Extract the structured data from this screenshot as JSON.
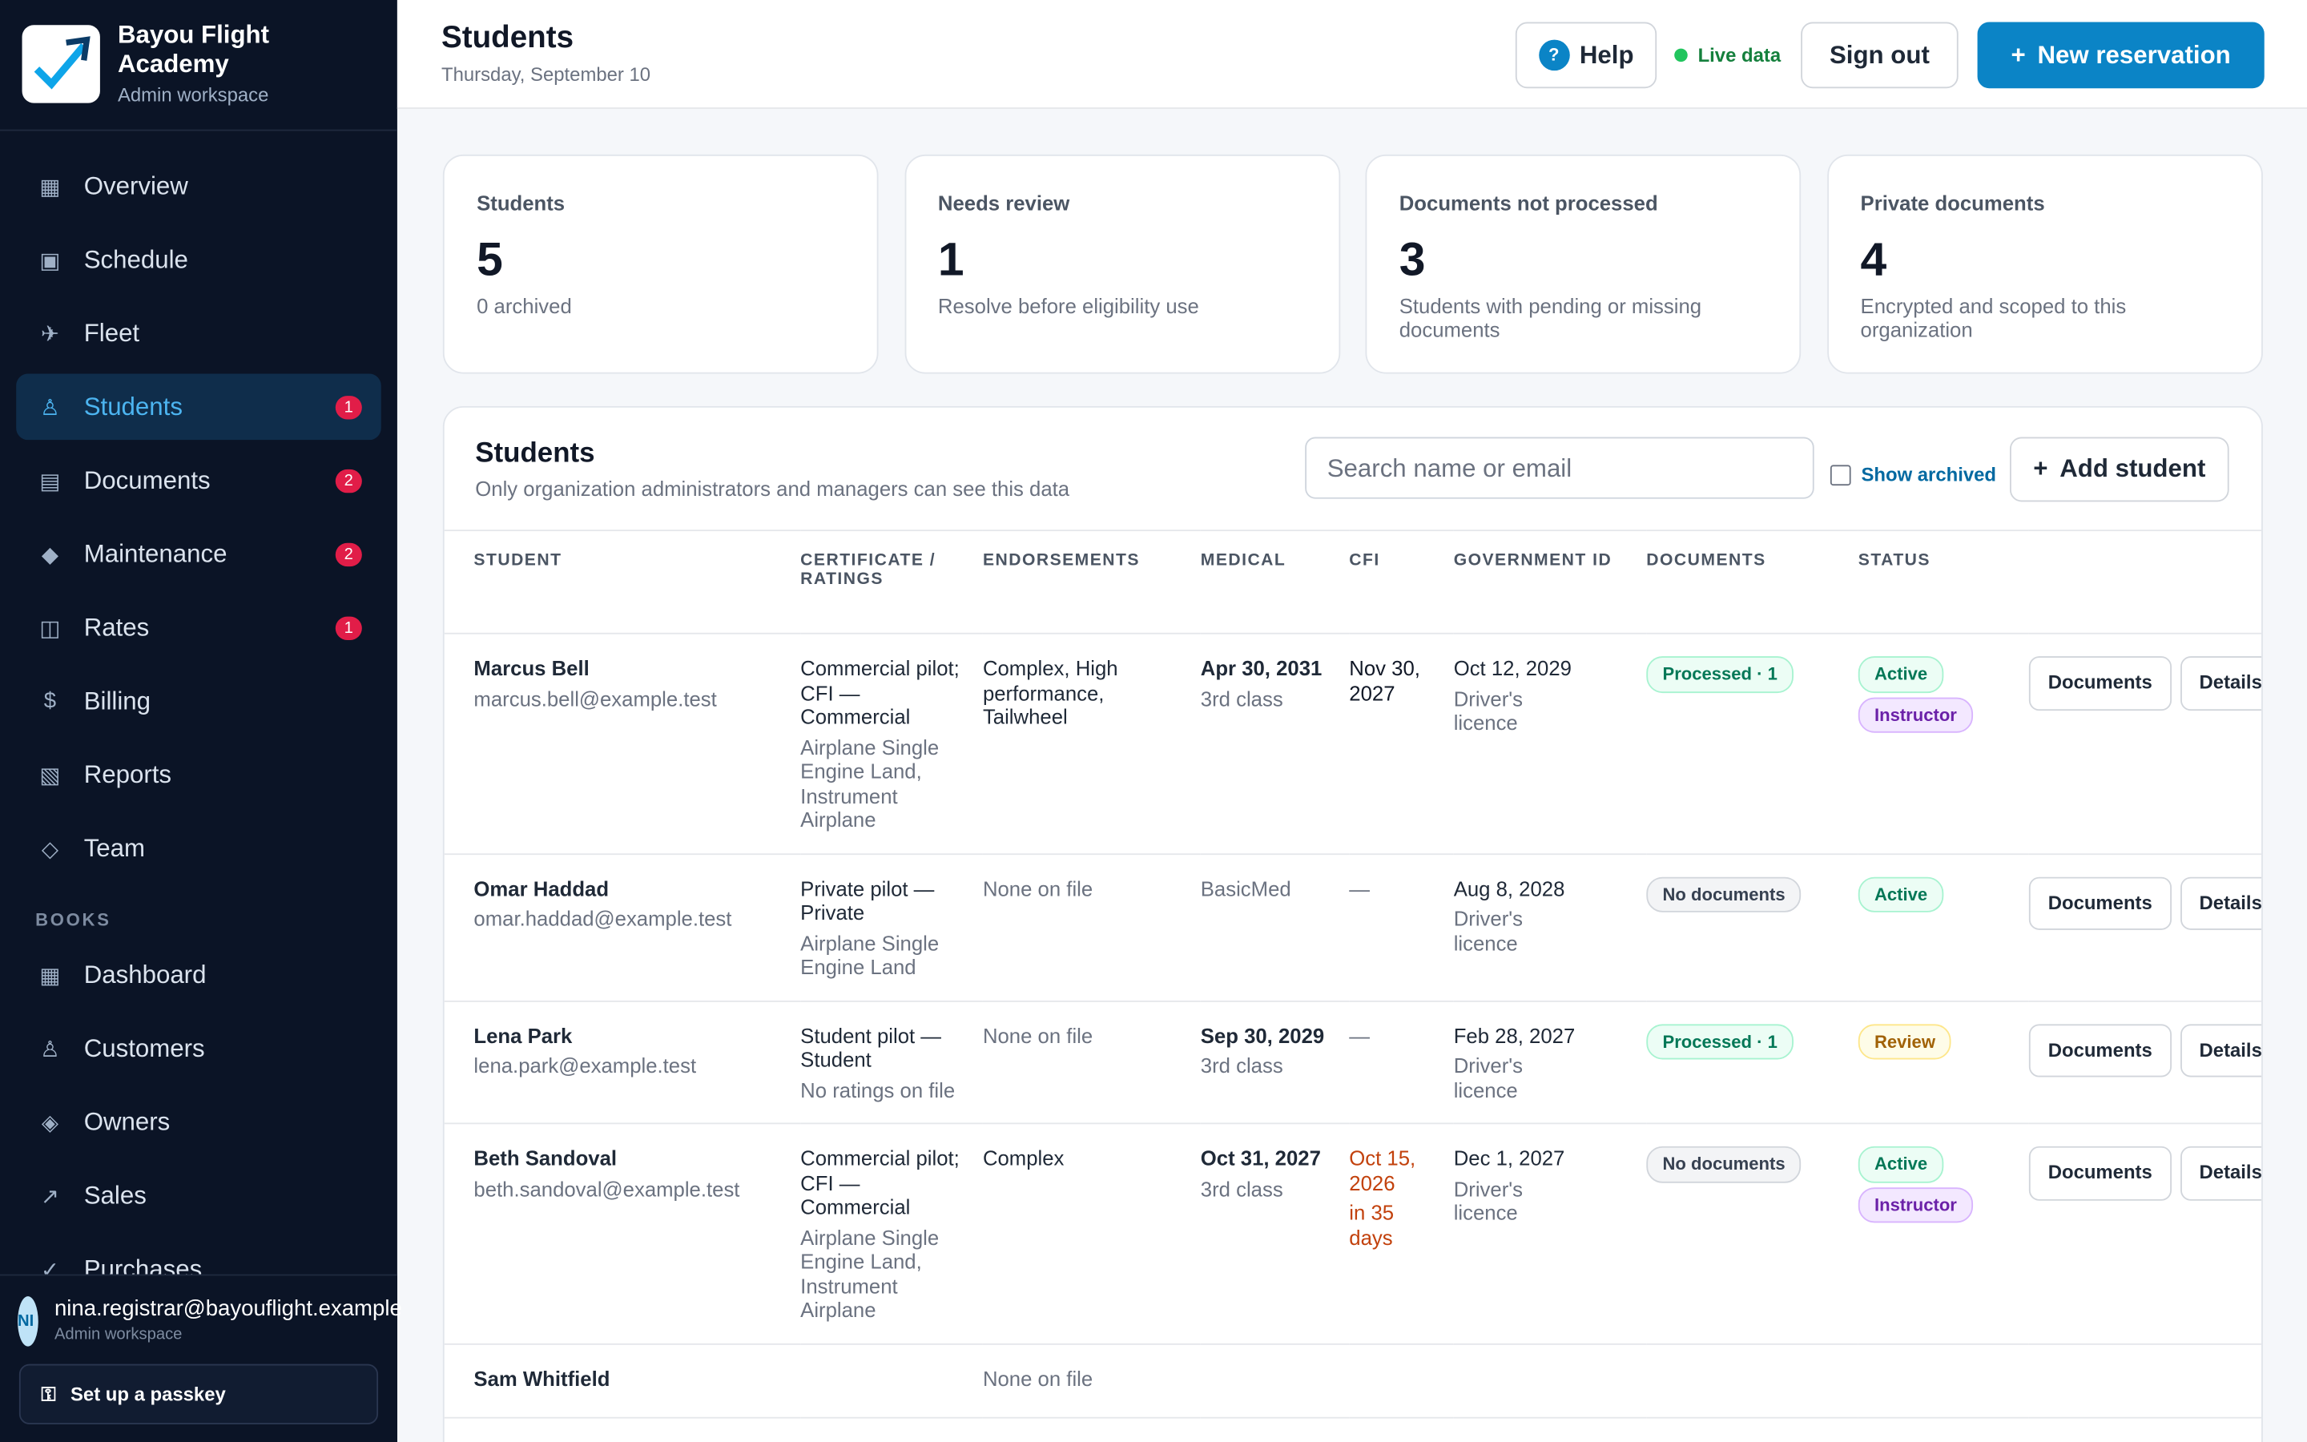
{
  "brand": {
    "name": "Bayou Flight Academy",
    "subtitle": "Admin workspace"
  },
  "nav": [
    {
      "label": "Overview"
    },
    {
      "label": "Schedule"
    },
    {
      "label": "Fleet"
    },
    {
      "label": "Students",
      "badge": 1
    },
    {
      "label": "Documents",
      "badge": 2
    },
    {
      "label": "Maintenance",
      "badge": 2
    },
    {
      "label": "Rates",
      "badge": 1
    },
    {
      "label": "Billing"
    },
    {
      "label": "Reports"
    },
    {
      "label": "Team"
    }
  ],
  "books": {
    "heading": "BOOKS",
    "items": [
      "Dashboard",
      "Customers",
      "Owners",
      "Sales",
      "Purchases"
    ]
  },
  "user": {
    "initials": "NI",
    "email": "nina.registrar@bayouflight.example",
    "role": "Admin workspace",
    "passkey": "Set up a passkey"
  },
  "header": {
    "title": "Students",
    "date": "Thursday, September 10",
    "help": "Help",
    "live": "Live data",
    "sign_out": "Sign out",
    "new_reservation": "New reservation"
  },
  "stats": [
    {
      "label": "Students",
      "value": 5,
      "note": "0 archived"
    },
    {
      "label": "Needs review",
      "value": 1,
      "note": "Resolve before eligibility use"
    },
    {
      "label": "Documents not processed",
      "value": 3,
      "note": "Students with pending or missing documents"
    },
    {
      "label": "Private documents",
      "value": 4,
      "note": "Encrypted and scoped to this organization"
    }
  ],
  "panel": {
    "title": "Students",
    "subtitle": "Only organization administrators and managers can see this data",
    "search": "Search name or email",
    "show_archived": "Show archived",
    "add_student": "Add student"
  },
  "table": {
    "columns": [
      "STUDENT",
      "CERTIFICATE / RATINGS",
      "ENDORSEMENTS",
      "MEDICAL",
      "CFI",
      "GOVERNMENT ID",
      "DOCUMENTS",
      "STATUS"
    ],
    "actions": [
      "Documents",
      "Details"
    ],
    "rows": [
      {
        "name": "Marcus Bell",
        "email": "marcus.bell@example.test",
        "certificate": "Commercial pilot; CFI — Commercial",
        "ratings": "Airplane Single Engine Land, Instrument Airplane",
        "endorsements": "Complex, High performance, Tailwheel",
        "medical": "Apr 30, 2031",
        "medical_class": "3rd class",
        "cfi": {
          "text": "Nov 30, 2027",
          "color": "#111827"
        },
        "gov_id": "Oct 12, 2029",
        "gov_type": "Driver's licence",
        "documents": {
          "label": "Processed · 1",
          "color": "#047857",
          "bg": "#ecfdf5",
          "border": "#a7f3d0"
        },
        "status": [
          {
            "label": "Active",
            "color": "#047857",
            "bg": "#ecfdf5",
            "border": "#a7f3d0"
          },
          {
            "label": "Instructor",
            "color": "#6b21a8",
            "bg": "#f3e8ff",
            "border": "#d8b4fe"
          }
        ]
      },
      {
        "name": "Omar Haddad",
        "email": "omar.haddad@example.test",
        "certificate": "Private pilot — Private",
        "ratings": "Airplane Single Engine Land",
        "endorsements": "None on file",
        "endorsements_muted": true,
        "medical": "BasicMed",
        "medical_muted": true,
        "cfi": {
          "text": "—",
          "color": "#6b7280"
        },
        "gov_id": "Aug 8, 2028",
        "gov_type": "Driver's licence",
        "documents": {
          "label": "No documents",
          "color": "#374151",
          "bg": "#f3f4f6",
          "border": "#d1d5db"
        },
        "status": [
          {
            "label": "Active",
            "color": "#047857",
            "bg": "#ecfdf5",
            "border": "#a7f3d0"
          }
        ]
      },
      {
        "name": "Lena Park",
        "email": "lena.park@example.test",
        "certificate": "Student pilot — Student",
        "ratings": "No ratings on file",
        "endorsements": "None on file",
        "endorsements_muted": true,
        "medical": "Sep 30, 2029",
        "medical_class": "3rd class",
        "cfi": {
          "text": "—",
          "color": "#6b7280"
        },
        "gov_id": "Feb 28, 2027",
        "gov_type": "Driver's licence",
        "documents": {
          "label": "Processed · 1",
          "color": "#047857",
          "bg": "#ecfdf5",
          "border": "#a7f3d0"
        },
        "status": [
          {
            "label": "Review",
            "color": "#a16207",
            "bg": "#fefce8",
            "border": "#fde68a"
          }
        ]
      },
      {
        "name": "Beth Sandoval",
        "email": "beth.sandoval@example.test",
        "certificate": "Commercial pilot; CFI — Commercial",
        "ratings": "Airplane Single Engine Land, Instrument Airplane",
        "endorsements": "Complex",
        "medical": "Oct 31, 2027",
        "medical_class": "3rd class",
        "cfi": {
          "text": "Oct 15, 2026",
          "note": "in 35 days",
          "color": "#c2410c"
        },
        "gov_id": "Dec 1, 2027",
        "gov_type": "Driver's licence",
        "documents": {
          "label": "No documents",
          "color": "#374151",
          "bg": "#f3f4f6",
          "border": "#d1d5db"
        },
        "status": [
          {
            "label": "Active",
            "color": "#047857",
            "bg": "#ecfdf5",
            "border": "#a7f3d0"
          },
          {
            "label": "Instructor",
            "color": "#6b21a8",
            "bg": "#f3e8ff",
            "border": "#d8b4fe"
          }
        ]
      },
      {
        "name": "Sam Whitfield",
        "endorsements": "None on file",
        "endorsements_muted": true
      }
    ]
  }
}
